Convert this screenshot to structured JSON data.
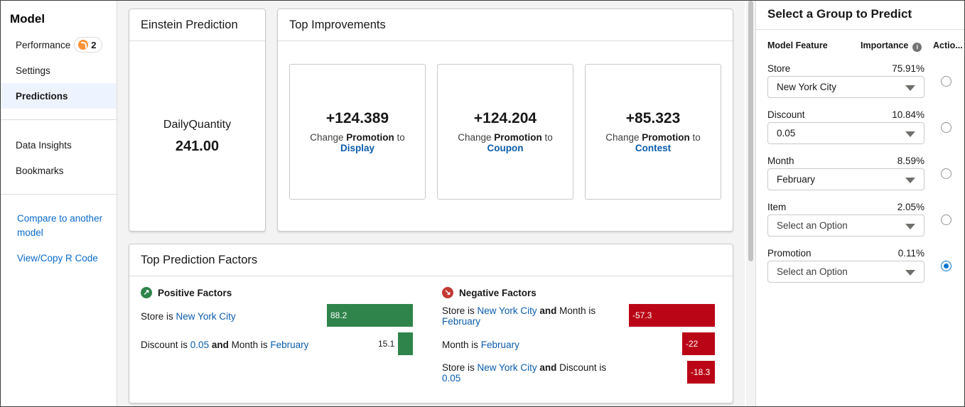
{
  "sidebar": {
    "title": "Model",
    "items": [
      {
        "label": "Performance",
        "badge": "2"
      },
      {
        "label": "Settings"
      },
      {
        "label": "Predictions"
      },
      {
        "label": "Data Insights"
      },
      {
        "label": "Bookmarks"
      }
    ],
    "links": [
      "Compare to another model",
      "View/Copy R Code"
    ]
  },
  "einstein": {
    "title": "Einstein Prediction",
    "label": "DailyQuantity",
    "value": "241.00"
  },
  "improvements": {
    "title": "Top Improvements",
    "tiles": [
      {
        "value": "+124.389",
        "prefix": "Change ",
        "field": "Promotion",
        "suffix": " to",
        "target": "Display"
      },
      {
        "value": "+124.204",
        "prefix": "Change ",
        "field": "Promotion",
        "suffix": " to",
        "target": "Coupon"
      },
      {
        "value": "+85.323",
        "prefix": "Change ",
        "field": "Promotion",
        "suffix": " to",
        "target": "Contest"
      }
    ]
  },
  "factors": {
    "title": "Top Prediction Factors",
    "positive": {
      "heading": "Positive Factors",
      "rows": [
        {
          "f1": "Store",
          "is": " is ",
          "v1": "New York City",
          "value": "88.2"
        },
        {
          "f1": "Discount",
          "is": " is ",
          "v1": "0.05",
          "and": " and ",
          "f2": "Month",
          "is2": " is ",
          "v2": "February",
          "value": "15.1"
        }
      ]
    },
    "negative": {
      "heading": "Negative Factors",
      "rows": [
        {
          "f1": "Store",
          "is": " is ",
          "v1": "New York City",
          "and": " and ",
          "f2": "Month",
          "is2": " is",
          "v2": "February",
          "value": "-57.3"
        },
        {
          "f1": "Month",
          "is": " is ",
          "v1": "February",
          "value": "-22"
        },
        {
          "f1": "Store",
          "is": " is ",
          "v1": "New York City",
          "and": " and ",
          "f2": "Discount",
          "is2": " is",
          "v2": "0.05",
          "value": "-18.3"
        }
      ]
    }
  },
  "panel": {
    "title": "Select a Group to Predict",
    "col_feature": "Model Feature",
    "col_importance": "Importance",
    "col_action": "Actio...",
    "features": [
      {
        "name": "Store",
        "importance": "75.91%",
        "value": "New York City",
        "placeholder": false,
        "selected": false
      },
      {
        "name": "Discount",
        "importance": "10.84%",
        "value": "0.05",
        "placeholder": false,
        "selected": false
      },
      {
        "name": "Month",
        "importance": "8.59%",
        "value": "February",
        "placeholder": false,
        "selected": false
      },
      {
        "name": "Item",
        "importance": "2.05%",
        "value": "Select an Option",
        "placeholder": true,
        "selected": false
      },
      {
        "name": "Promotion",
        "importance": "0.11%",
        "value": "Select an Option",
        "placeholder": true,
        "selected": true
      }
    ]
  },
  "colors": {
    "positive": "#2e844a",
    "negative": "#ba0517",
    "link": "#0b5cab",
    "active_bg": "#eef4ff"
  }
}
